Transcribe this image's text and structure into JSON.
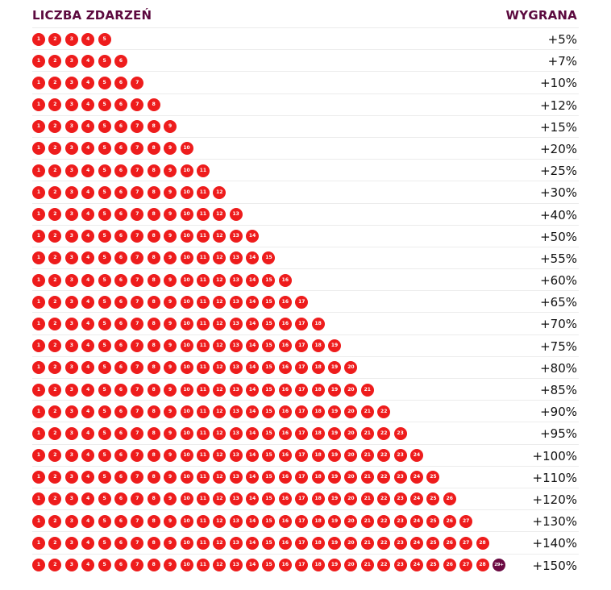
{
  "header": {
    "events_label": "LICZBA ZDARZEŃ",
    "bonus_label": "WYGRANA"
  },
  "colors": {
    "ball": "#ee1c1c",
    "ball_plus": "#6b0a42",
    "header_text": "#5c0a3f"
  },
  "rows": [
    {
      "events": 5,
      "bonus": "+5%"
    },
    {
      "events": 6,
      "bonus": "+7%"
    },
    {
      "events": 7,
      "bonus": "+10%"
    },
    {
      "events": 8,
      "bonus": "+12%"
    },
    {
      "events": 9,
      "bonus": "+15%"
    },
    {
      "events": 10,
      "bonus": "+20%"
    },
    {
      "events": 11,
      "bonus": "+25%"
    },
    {
      "events": 12,
      "bonus": "+30%"
    },
    {
      "events": 13,
      "bonus": "+40%"
    },
    {
      "events": 14,
      "bonus": "+50%"
    },
    {
      "events": 15,
      "bonus": "+55%"
    },
    {
      "events": 16,
      "bonus": "+60%"
    },
    {
      "events": 17,
      "bonus": "+65%"
    },
    {
      "events": 18,
      "bonus": "+70%"
    },
    {
      "events": 19,
      "bonus": "+75%"
    },
    {
      "events": 20,
      "bonus": "+80%"
    },
    {
      "events": 21,
      "bonus": "+85%"
    },
    {
      "events": 22,
      "bonus": "+90%"
    },
    {
      "events": 23,
      "bonus": "+95%"
    },
    {
      "events": 24,
      "bonus": "+100%"
    },
    {
      "events": 25,
      "bonus": "+110%"
    },
    {
      "events": 26,
      "bonus": "+120%"
    },
    {
      "events": 27,
      "bonus": "+130%"
    },
    {
      "events": 28,
      "bonus": "+140%"
    },
    {
      "events": 28,
      "extra_label": "29+",
      "bonus": "+150%"
    }
  ]
}
